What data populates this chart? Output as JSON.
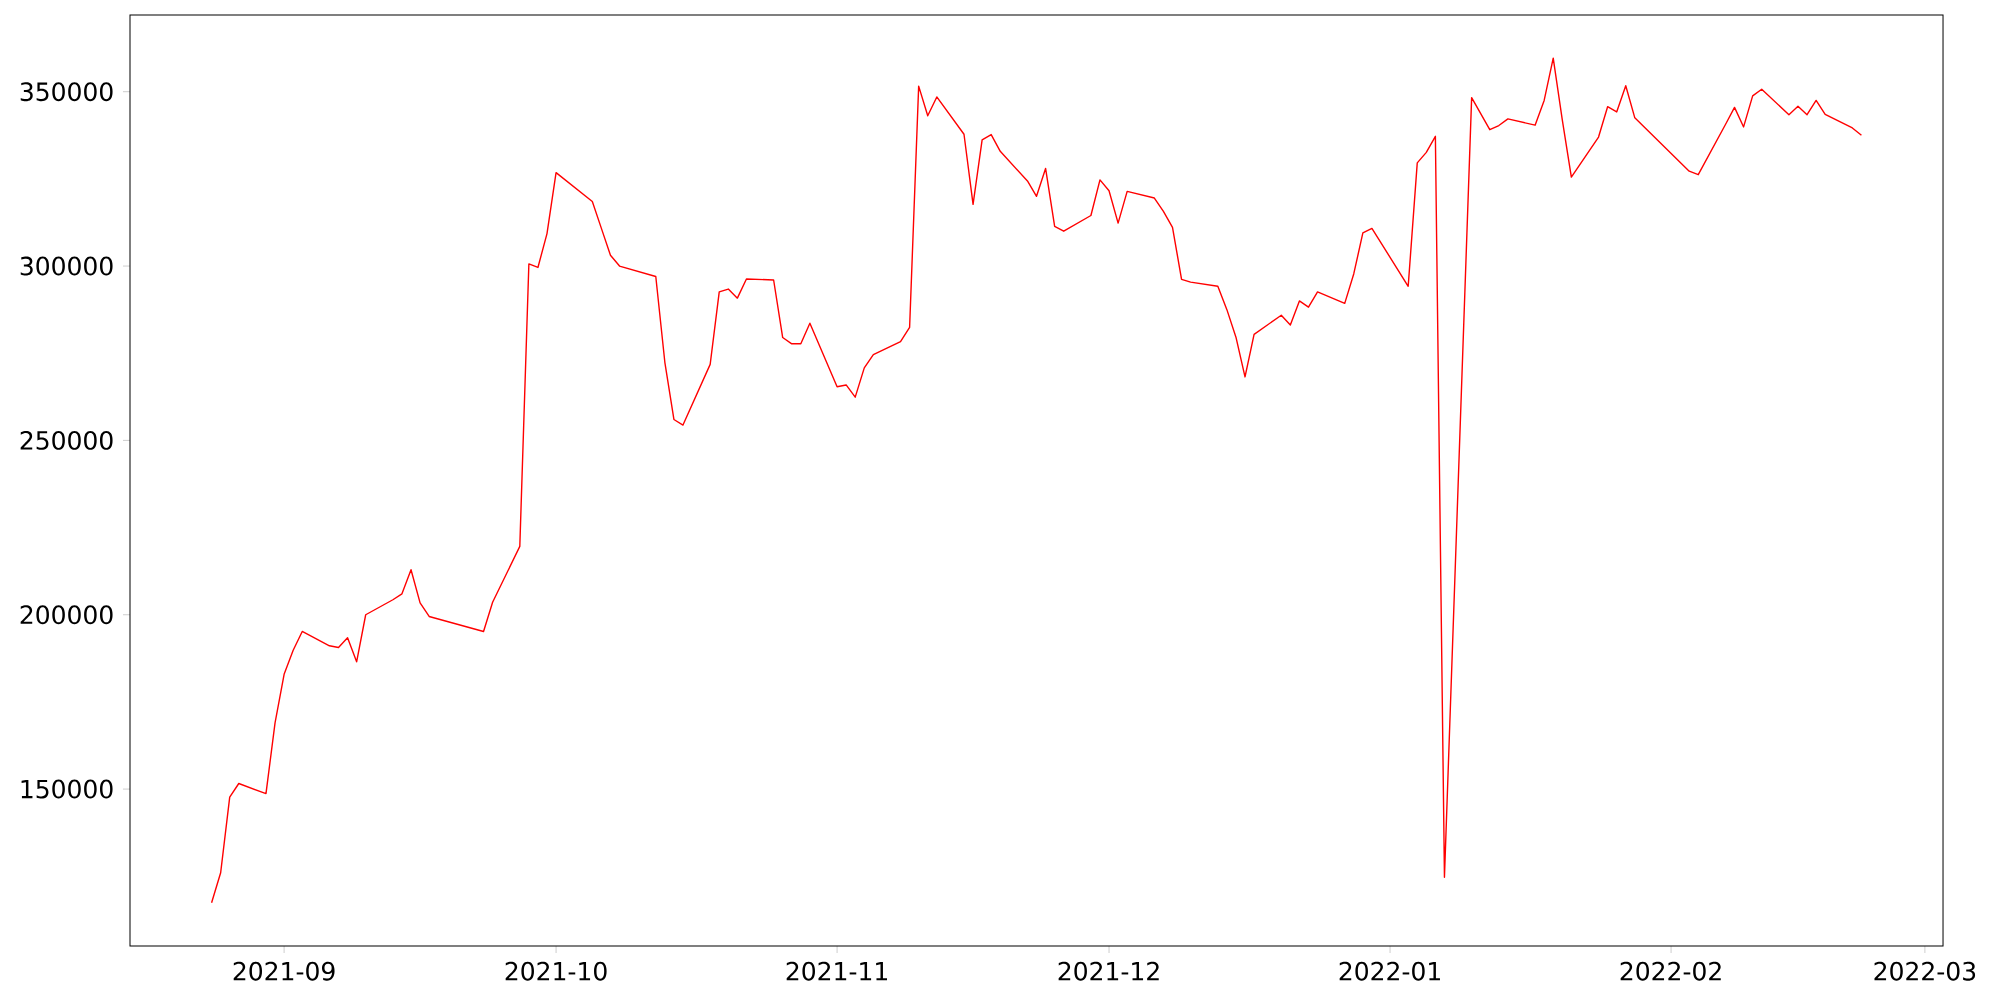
{
  "chart_data": {
    "type": "line",
    "color": "#ff0000",
    "x": [
      "2021-08-24",
      "2021-08-25",
      "2021-08-26",
      "2021-08-27",
      "2021-08-30",
      "2021-08-31",
      "2021-09-01",
      "2021-09-02",
      "2021-09-03",
      "2021-09-06",
      "2021-09-07",
      "2021-09-08",
      "2021-09-09",
      "2021-09-10",
      "2021-09-13",
      "2021-09-14",
      "2021-09-15",
      "2021-09-16",
      "2021-09-17",
      "2021-09-23",
      "2021-09-24",
      "2021-09-27",
      "2021-09-28",
      "2021-09-29",
      "2021-09-30",
      "2021-10-01",
      "2021-10-05",
      "2021-10-06",
      "2021-10-07",
      "2021-10-08",
      "2021-10-12",
      "2021-10-13",
      "2021-10-14",
      "2021-10-15",
      "2021-10-18",
      "2021-10-19",
      "2021-10-20",
      "2021-10-21",
      "2021-10-22",
      "2021-10-25",
      "2021-10-26",
      "2021-10-27",
      "2021-10-28",
      "2021-10-29",
      "2021-11-01",
      "2021-11-02",
      "2021-11-03",
      "2021-11-04",
      "2021-11-05",
      "2021-11-08",
      "2021-11-09",
      "2021-11-10",
      "2021-11-11",
      "2021-11-12",
      "2021-11-15",
      "2021-11-16",
      "2021-11-17",
      "2021-11-18",
      "2021-11-19",
      "2021-11-22",
      "2021-11-23",
      "2021-11-24",
      "2021-11-25",
      "2021-11-26",
      "2021-11-29",
      "2021-11-30",
      "2021-12-01",
      "2021-12-02",
      "2021-12-03",
      "2021-12-06",
      "2021-12-07",
      "2021-12-08",
      "2021-12-09",
      "2021-12-10",
      "2021-12-13",
      "2021-12-14",
      "2021-12-15",
      "2021-12-16",
      "2021-12-17",
      "2021-12-20",
      "2021-12-21",
      "2021-12-22",
      "2021-12-23",
      "2021-12-24",
      "2021-12-27",
      "2021-12-28",
      "2021-12-29",
      "2021-12-30",
      "2022-01-03",
      "2022-01-04",
      "2022-01-05",
      "2022-01-06",
      "2022-01-07",
      "2022-01-10",
      "2022-01-11",
      "2022-01-12",
      "2022-01-13",
      "2022-01-14",
      "2022-01-17",
      "2022-01-18",
      "2022-01-19",
      "2022-01-20",
      "2022-01-21",
      "2022-01-24",
      "2022-01-25",
      "2022-01-26",
      "2022-01-27",
      "2022-01-28",
      "2022-02-03",
      "2022-02-04",
      "2022-02-07",
      "2022-02-08",
      "2022-02-09",
      "2022-02-10",
      "2022-02-11",
      "2022-02-14",
      "2022-02-15",
      "2022-02-16",
      "2022-02-17",
      "2022-02-18",
      "2022-02-21",
      "2022-02-22"
    ],
    "values": [
      117400,
      126000,
      147700,
      151600,
      148700,
      169000,
      182900,
      189800,
      195200,
      191100,
      190600,
      193400,
      186500,
      200000,
      204300,
      206000,
      212900,
      203400,
      199500,
      195200,
      203600,
      219600,
      300600,
      299600,
      309300,
      326800,
      318500,
      310800,
      303100,
      300000,
      297000,
      272400,
      256000,
      254400,
      271800,
      292600,
      293400,
      290800,
      296300,
      296000,
      279500,
      277700,
      277700,
      283600,
      265400,
      265900,
      262400,
      270800,
      274600,
      278300,
      282400,
      351600,
      343100,
      348500,
      337800,
      317700,
      336200,
      337700,
      332900,
      324400,
      320000,
      328000,
      311400,
      310000,
      314500,
      324700,
      321600,
      312300,
      321400,
      319500,
      315700,
      311100,
      296200,
      295400,
      294200,
      287500,
      279600,
      268200,
      280400,
      285900,
      283100,
      290000,
      288200,
      292600,
      289300,
      297800,
      309500,
      310800,
      294200,
      329600,
      332600,
      337200,
      124700,
      348300,
      343700,
      339100,
      340300,
      342200,
      340400,
      347500,
      359600,
      341900,
      325500,
      337000,
      345700,
      344200,
      351700,
      342500,
      327200,
      326200,
      340600,
      345500,
      339900,
      348800,
      350700,
      343400,
      345800,
      343400,
      347500,
      343500,
      339600,
      337500
    ],
    "xlim": [
      "2021-08-15",
      "2022-03-03"
    ],
    "ylim": [
      105000,
      372000
    ],
    "xticks": [
      "2021-09",
      "2021-10",
      "2021-11",
      "2021-12",
      "2022-01",
      "2022-02",
      "2022-03"
    ],
    "yticks": [
      150000,
      200000,
      250000,
      300000,
      350000
    ]
  }
}
